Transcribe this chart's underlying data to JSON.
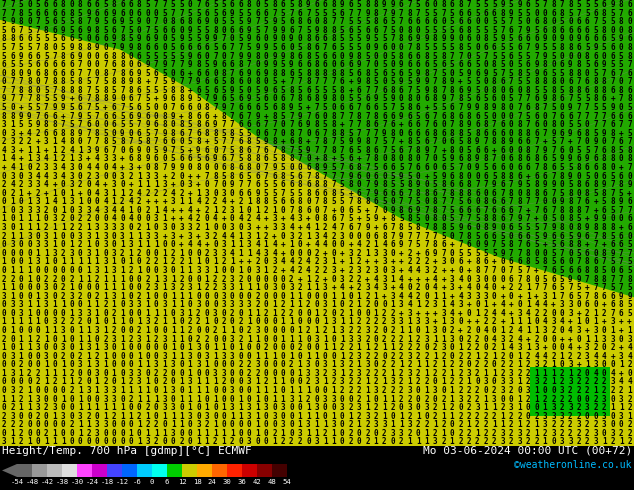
{
  "title_left": "Height/Temp. 700 hPa [gdmp][°C] ECMWF",
  "title_right": "Mo 03-06-2024 00:00 UTC (00+72)",
  "credit": "©weatheronline.co.uk",
  "colorbar_values": [
    "-54",
    "-48",
    "-42",
    "-38",
    "-30",
    "-24",
    "-18",
    "-12",
    "-6",
    "0",
    "6",
    "12",
    "18",
    "24",
    "30",
    "36",
    "42",
    "48",
    "54"
  ],
  "colorbar_colors": [
    "#666666",
    "#999999",
    "#bbbbbb",
    "#dddddd",
    "#ff44ff",
    "#cc00cc",
    "#4444ff",
    "#0066ff",
    "#00ccff",
    "#00ffee",
    "#00cc00",
    "#cccc00",
    "#ffaa00",
    "#ff6600",
    "#ff2200",
    "#cc0000",
    "#880000",
    "#440000"
  ],
  "bg_color": "#000000",
  "text_color": "#ffffff",
  "label_color": "#00bbff",
  "green_top": "#00bb00",
  "yellow_region": "#cccc00",
  "green_dark": "#008800"
}
